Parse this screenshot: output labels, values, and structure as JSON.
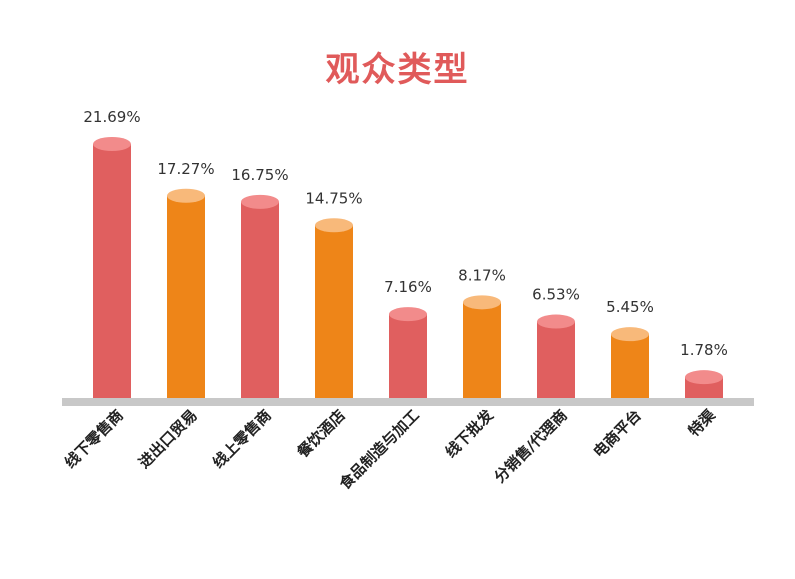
{
  "chart_data": {
    "type": "bar",
    "title": "观众类型",
    "categories": [
      "线下零售商",
      "进出口贸易",
      "线上零售商",
      "餐饮酒店",
      "食品制造与加工",
      "线下批发",
      "分销售/代理商",
      "电商平台",
      "特渠"
    ],
    "values": [
      21.69,
      17.27,
      16.75,
      14.75,
      7.16,
      8.17,
      6.53,
      5.45,
      1.78
    ],
    "value_labels": [
      "21.69%",
      "17.27%",
      "16.75%",
      "14.75%",
      "7.16%",
      "8.17%",
      "6.53%",
      "5.45%",
      "1.78%"
    ],
    "ylim": [
      0,
      24
    ],
    "grid": false,
    "legend": "none",
    "colors": {
      "red_body": "#e05f5f",
      "red_top": "#f28b8b",
      "orange_body": "#ee8518",
      "orange_top": "#f8b97a",
      "baseline": "#c8c8c8",
      "title": "#e05a5a"
    }
  }
}
